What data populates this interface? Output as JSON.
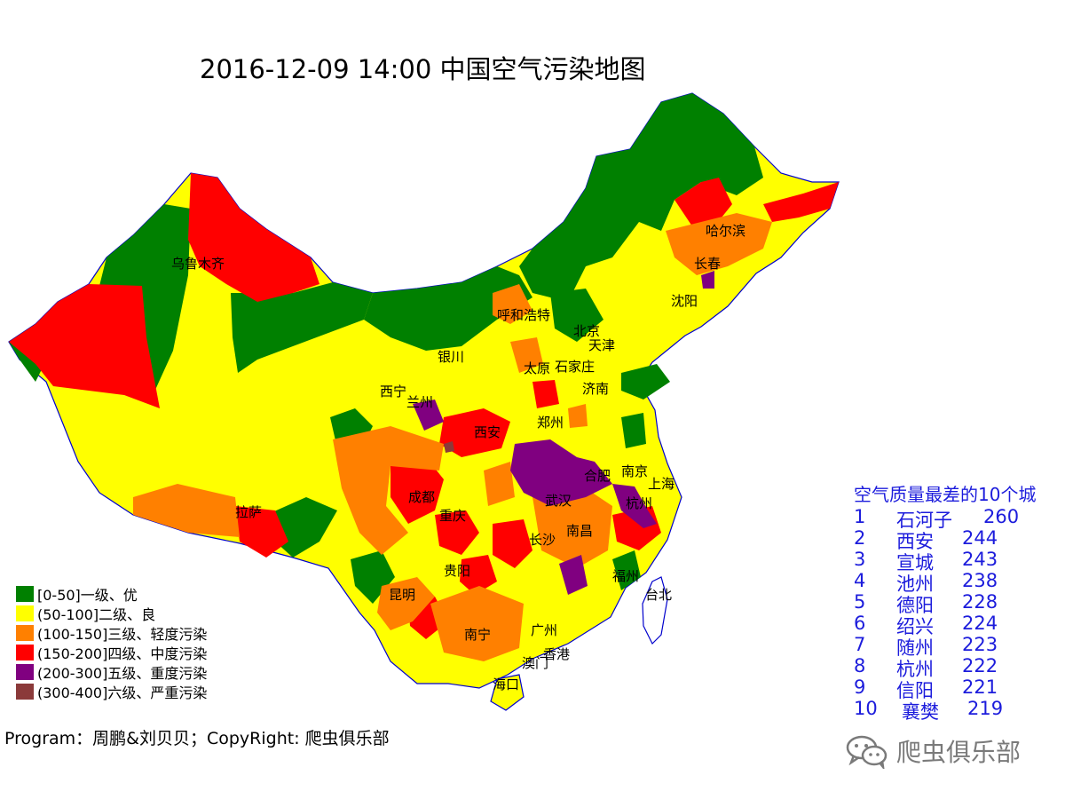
{
  "title": "2016-12-09 14:00 中国空气污染地图",
  "legend": [
    {
      "label": "[0-50]一级、优",
      "color": "#008000"
    },
    {
      "label": "(50-100]二级、良",
      "color": "#ffff00"
    },
    {
      "label": "(100-150]三级、轻度污染",
      "color": "#ff8000"
    },
    {
      "label": "(150-200]四级、中度污染",
      "color": "#ff0000"
    },
    {
      "label": "(200-300]五级、重度污染",
      "color": "#800080"
    },
    {
      "label": "(300-400]六级、严重污染",
      "color": "#8b3a3a"
    }
  ],
  "cities": [
    "乌鲁木齐",
    "拉萨",
    "西宁",
    "兰州",
    "银川",
    "呼和浩特",
    "北京",
    "天津",
    "太原",
    "石家庄",
    "济南",
    "郑州",
    "西安",
    "成都",
    "重庆",
    "贵阳",
    "昆明",
    "南宁",
    "广州",
    "香港",
    "澳门",
    "海口",
    "长沙",
    "武汉",
    "南昌",
    "合肥",
    "南京",
    "上海",
    "杭州",
    "福州",
    "台北",
    "沈阳",
    "长春",
    "哈尔滨"
  ],
  "ranking": {
    "title": "空气质量最差的10个城",
    "items": [
      {
        "rank": "1",
        "city": "石河子",
        "value": "260"
      },
      {
        "rank": "2",
        "city": "西安",
        "value": "244"
      },
      {
        "rank": "3",
        "city": "宣城",
        "value": "243"
      },
      {
        "rank": "4",
        "city": "池州",
        "value": "238"
      },
      {
        "rank": "5",
        "city": "德阳",
        "value": "228"
      },
      {
        "rank": "6",
        "city": "绍兴",
        "value": "224"
      },
      {
        "rank": "7",
        "city": "随州",
        "value": "223"
      },
      {
        "rank": "8",
        "city": "杭州",
        "value": "222"
      },
      {
        "rank": "9",
        "city": "信阳",
        "value": "221"
      },
      {
        "rank": "10",
        "city": "襄樊",
        "value": "219"
      }
    ]
  },
  "credit": "Program：周鹏&刘贝贝；CopyRight: 爬虫俱乐部",
  "watermark": "爬虫俱乐部",
  "icons": {
    "watermark_icon": "wechat-icon"
  }
}
